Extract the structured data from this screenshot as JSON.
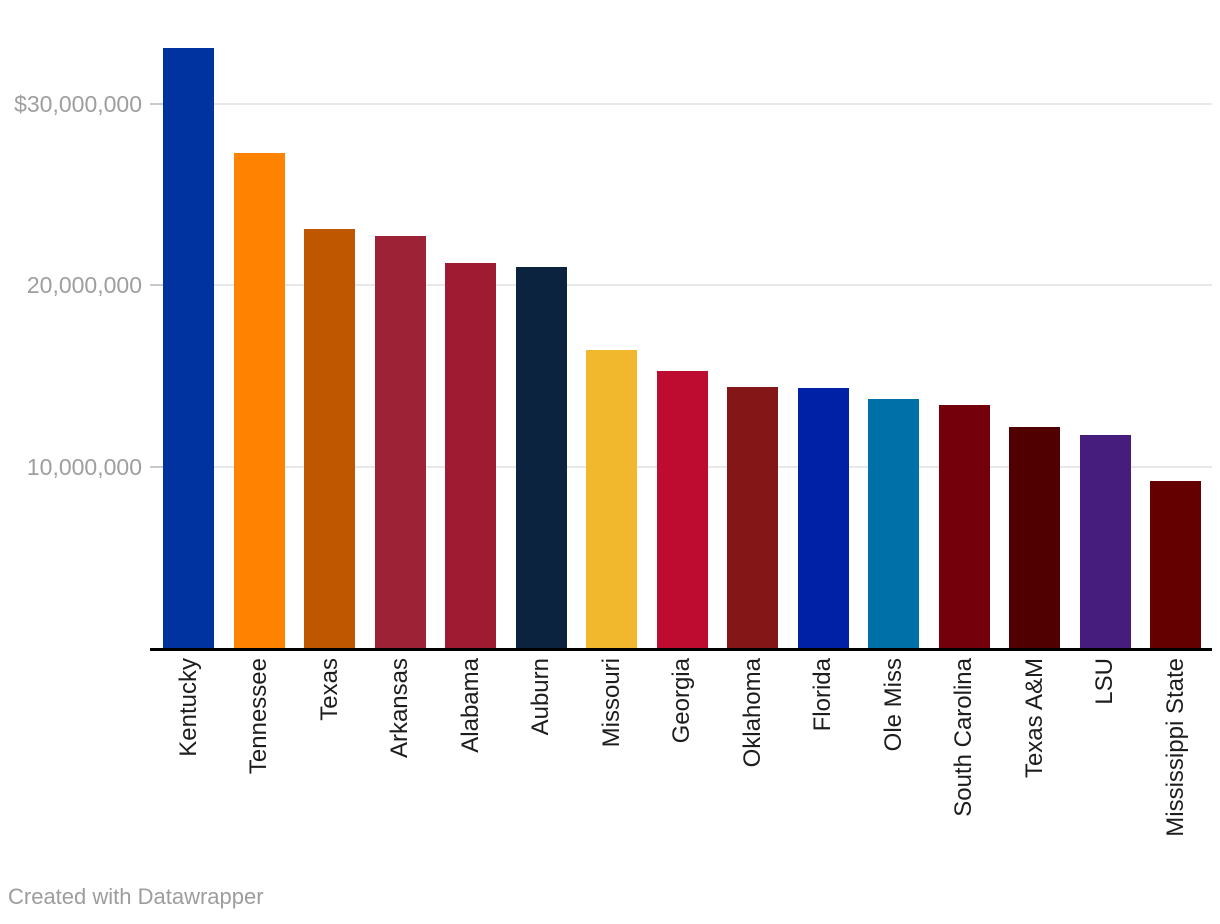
{
  "chart_data": {
    "type": "bar",
    "title": "",
    "categories": [
      "Kentucky",
      "Tennessee",
      "Texas",
      "Arkansas",
      "Alabama",
      "Auburn",
      "Missouri",
      "Georgia",
      "Oklahoma",
      "Florida",
      "Ole Miss",
      "South Carolina",
      "Texas A&M",
      "LSU",
      "Mississippi State"
    ],
    "values": [
      33100000,
      27300000,
      23100000,
      22700000,
      21250000,
      21000000,
      16450000,
      15300000,
      14400000,
      14350000,
      13750000,
      13400000,
      12200000,
      11750000,
      9200000
    ],
    "bar_colors": [
      "#0033A0",
      "#FF8200",
      "#BF5700",
      "#9D2235",
      "#9E1B32",
      "#0C2340",
      "#F1B82D",
      "#BD0C2F",
      "#841617",
      "#0021A5",
      "#0070A8",
      "#73000A",
      "#500000",
      "#461D7C",
      "#640000"
    ],
    "y_ticks": [
      {
        "label": "$30,000,000",
        "value": 30000000
      },
      {
        "label": "20,000,000",
        "value": 20000000
      },
      {
        "label": "10,000,000",
        "value": 10000000
      }
    ],
    "ylim": [
      0,
      33500000
    ],
    "xlabel": "",
    "ylabel": "",
    "grid": true,
    "legend": "none",
    "x_tick_rotation": -90
  },
  "footer": {
    "credit": "Created with Datawrapper"
  },
  "theme": {
    "background": "#ffffff",
    "grid_color": "#e8e8e8",
    "tick_dash_color": "#c9c9c9",
    "axis_line_color": "#000000",
    "y_tick_color": "#9e9e9e",
    "x_tick_color": "#1d1d1d",
    "footer_color": "#9d9d9d"
  }
}
